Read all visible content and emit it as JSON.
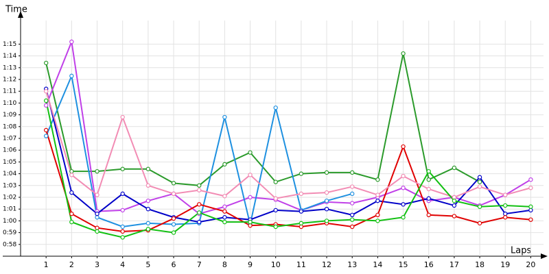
{
  "chart_data": {
    "type": "line",
    "y_label": "Time",
    "x_label": "Laps",
    "x": [
      1,
      2,
      3,
      4,
      5,
      6,
      7,
      8,
      9,
      10,
      11,
      12,
      13,
      14,
      15,
      16,
      17,
      18,
      19,
      20
    ],
    "xlim": [
      0,
      20.5
    ],
    "xticks": [
      1,
      2,
      3,
      4,
      5,
      6,
      7,
      8,
      9,
      10,
      11,
      12,
      13,
      14,
      15,
      16,
      17,
      18,
      19,
      20
    ],
    "ylim": [
      57,
      77
    ],
    "yticks": [
      {
        "value": 58,
        "label": "0:58"
      },
      {
        "value": 59,
        "label": "0:59"
      },
      {
        "value": 60,
        "label": "1:00"
      },
      {
        "value": 61,
        "label": "1:01"
      },
      {
        "value": 62,
        "label": "1:02"
      },
      {
        "value": 63,
        "label": "1:03"
      },
      {
        "value": 64,
        "label": "1:04"
      },
      {
        "value": 65,
        "label": "1:05"
      },
      {
        "value": 66,
        "label": "1:06"
      },
      {
        "value": 67,
        "label": "1:07"
      },
      {
        "value": 68,
        "label": "1:08"
      },
      {
        "value": 69,
        "label": "1:09"
      },
      {
        "value": 70,
        "label": "1:10"
      },
      {
        "value": 71,
        "label": "1:11"
      },
      {
        "value": 72,
        "label": "1:12"
      },
      {
        "value": 73,
        "label": "1:13"
      },
      {
        "value": 74,
        "label": "1:14"
      },
      {
        "value": 75,
        "label": "1:15"
      }
    ],
    "grid": true,
    "series": [
      {
        "color": "#2a9a2a",
        "values": [
          73.4,
          64.2,
          64.2,
          64.4,
          64.4,
          63.2,
          63.0,
          64.8,
          65.8,
          63.3,
          64.0,
          64.1,
          64.1,
          63.5,
          74.2,
          63.5,
          64.5,
          63.3,
          null,
          null
        ]
      },
      {
        "color": "#c040e8",
        "values": [
          69.8,
          75.2,
          60.8,
          60.9,
          61.7,
          62.3,
          60.6,
          61.2,
          62.0,
          61.8,
          60.9,
          61.6,
          61.5,
          62.0,
          62.8,
          61.7,
          62.0,
          61.3,
          62.2,
          63.5
        ]
      },
      {
        "color": "#1e90e0",
        "values": [
          67.2,
          72.3,
          60.3,
          59.5,
          59.8,
          59.7,
          59.8,
          68.8,
          59.7,
          69.6,
          60.9,
          61.7,
          62.3,
          null,
          null,
          null,
          null,
          null,
          null,
          null
        ]
      },
      {
        "color": "#0000c8",
        "values": [
          71.2,
          62.4,
          60.6,
          62.3,
          61.0,
          60.3,
          59.9,
          60.3,
          60.1,
          60.9,
          60.8,
          61.0,
          60.5,
          61.7,
          61.4,
          61.9,
          61.3,
          63.7,
          60.6,
          60.9
        ]
      },
      {
        "color": "#e00000",
        "values": [
          67.7,
          60.6,
          59.4,
          59.1,
          59.2,
          60.2,
          61.4,
          60.8,
          59.6,
          59.7,
          59.5,
          59.8,
          59.5,
          60.5,
          66.3,
          60.5,
          60.4,
          59.8,
          60.3,
          60.1
        ]
      },
      {
        "color": "#f28cb4",
        "values": [
          71.0,
          63.9,
          62.2,
          68.8,
          63.0,
          62.3,
          62.6,
          62.1,
          63.9,
          61.9,
          62.3,
          62.4,
          62.9,
          62.2,
          63.8,
          62.7,
          62.0,
          62.9,
          62.2,
          62.8
        ]
      },
      {
        "color": "#12c012",
        "values": [
          70.2,
          59.9,
          59.1,
          58.6,
          59.3,
          59.0,
          60.7,
          59.9,
          59.9,
          59.5,
          59.8,
          60.0,
          60.1,
          60.0,
          60.3,
          64.2,
          61.7,
          61.2,
          61.3,
          61.2
        ]
      }
    ]
  }
}
